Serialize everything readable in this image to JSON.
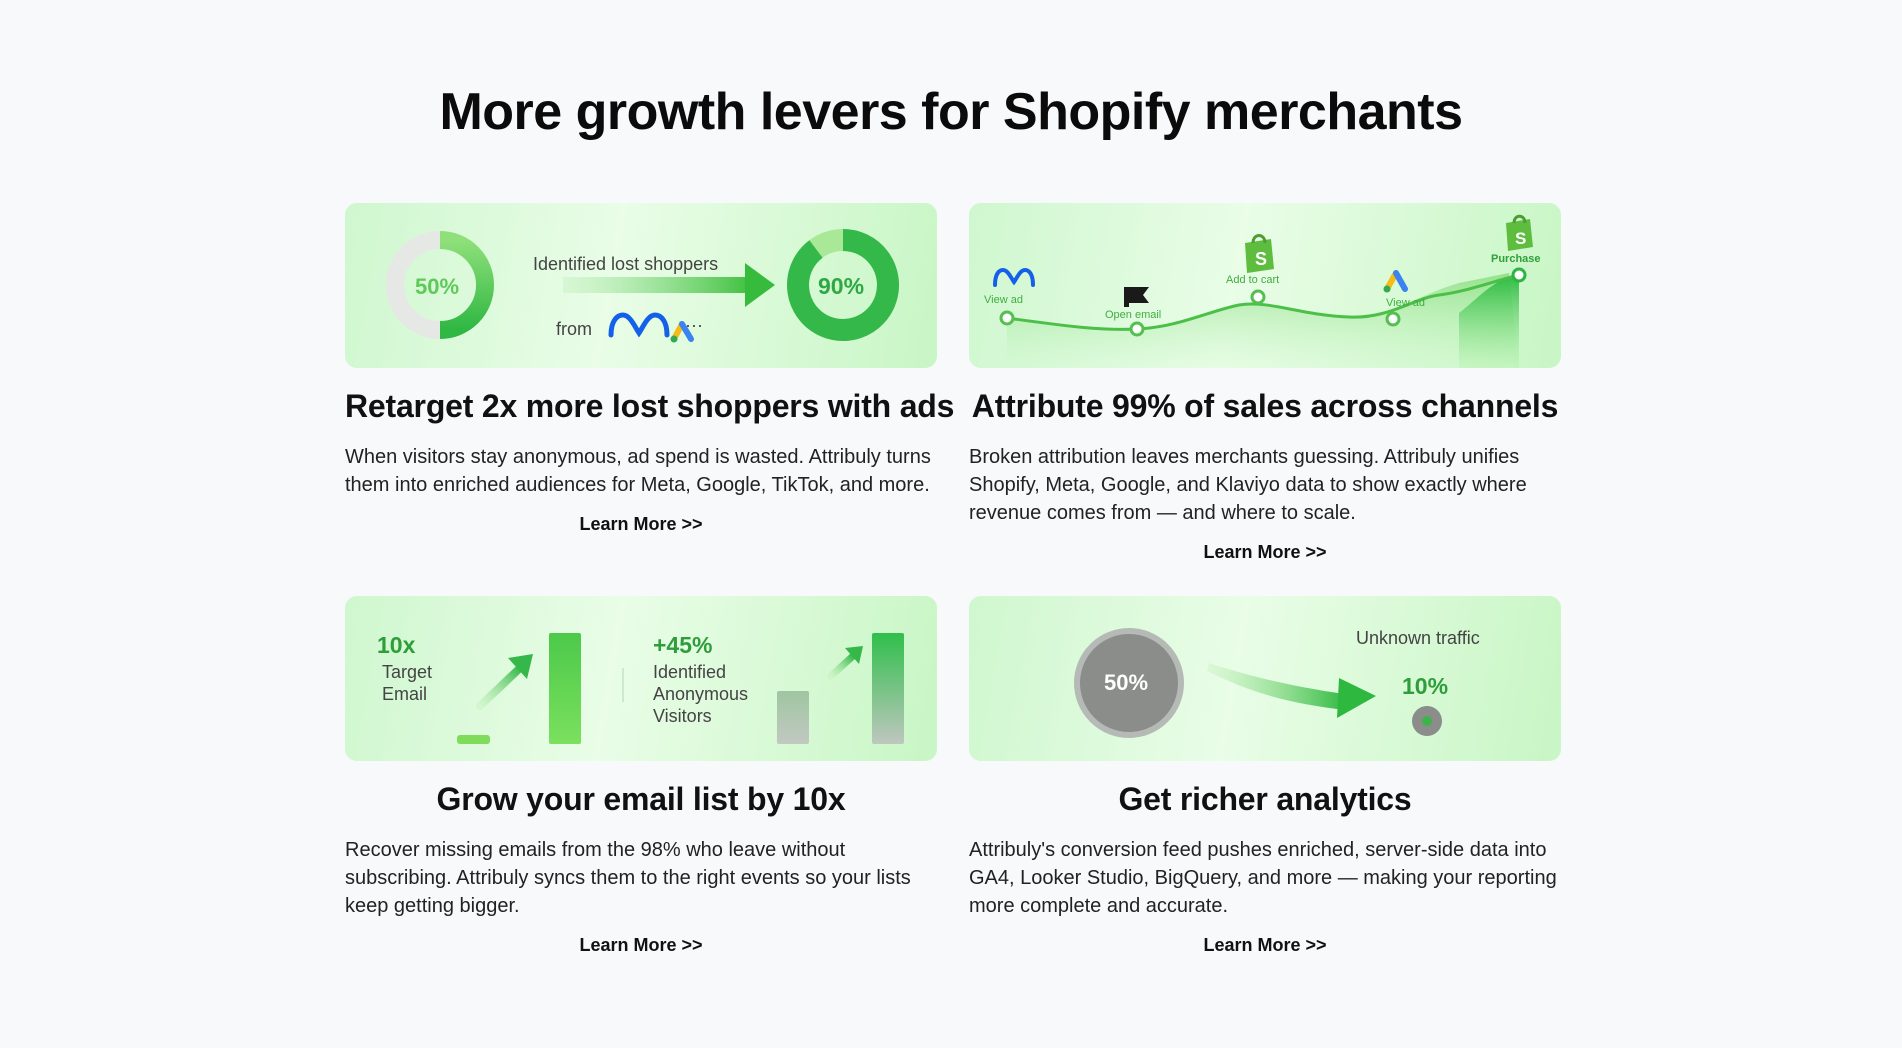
{
  "heading": "More growth levers for Shopify merchants",
  "colors": {
    "accent_green": "#35b84a",
    "bright_green": "#62d64f",
    "background": "#f8f9fb"
  },
  "cards": [
    {
      "title": "Retarget 2x more lost shoppers with ads",
      "description": "When visitors stay anonymous, ad spend is wasted. Attribuly turns them into enriched audiences for Meta, Google, TikTok, and more.",
      "learn_more": "Learn More >>",
      "banner": {
        "left_percent": "50%",
        "caption": "Identified lost shoppers",
        "from_label": "from",
        "more": "···",
        "right_percent": "90%",
        "icons": [
          "meta-logo-icon",
          "google-ads-logo-icon"
        ]
      }
    },
    {
      "title": "Attribute 99% of sales across channels",
      "description": "Broken attribution leaves merchants guessing. Attribuly unifies Shopify, Meta, Google, and Klaviyo data to show exactly where revenue comes from — and where to scale.",
      "learn_more": "Learn More >>",
      "banner": {
        "steps": [
          "View ad",
          "Open email",
          "Add to cart",
          "View ad",
          "Purchase"
        ],
        "icons": [
          "meta-logo-icon",
          "flag-icon",
          "shopify-bag-icon",
          "google-ads-logo-icon",
          "shopify-bag-icon"
        ]
      }
    },
    {
      "title": "Grow your email list by 10x",
      "description": "Recover missing emails from the 98% who leave without subscribing. Attribuly syncs them to the right events so your lists keep getting bigger.",
      "learn_more": "Learn More >>",
      "banner": {
        "left_value": "10x",
        "left_label_1": "Target",
        "left_label_2": "Email",
        "right_value": "+45%",
        "right_label_1": "Identified",
        "right_label_2": "Anonymous",
        "right_label_3": "Visitors"
      }
    },
    {
      "title": "Get richer analytics",
      "description": "Attribuly's conversion feed pushes enriched, server-side data into GA4, Looker Studio, BigQuery, and more — making your reporting more complete and accurate.",
      "learn_more": "Learn More >>",
      "banner": {
        "circle_percent": "50%",
        "caption": "Unknown traffic",
        "small_percent": "10%"
      }
    }
  ]
}
